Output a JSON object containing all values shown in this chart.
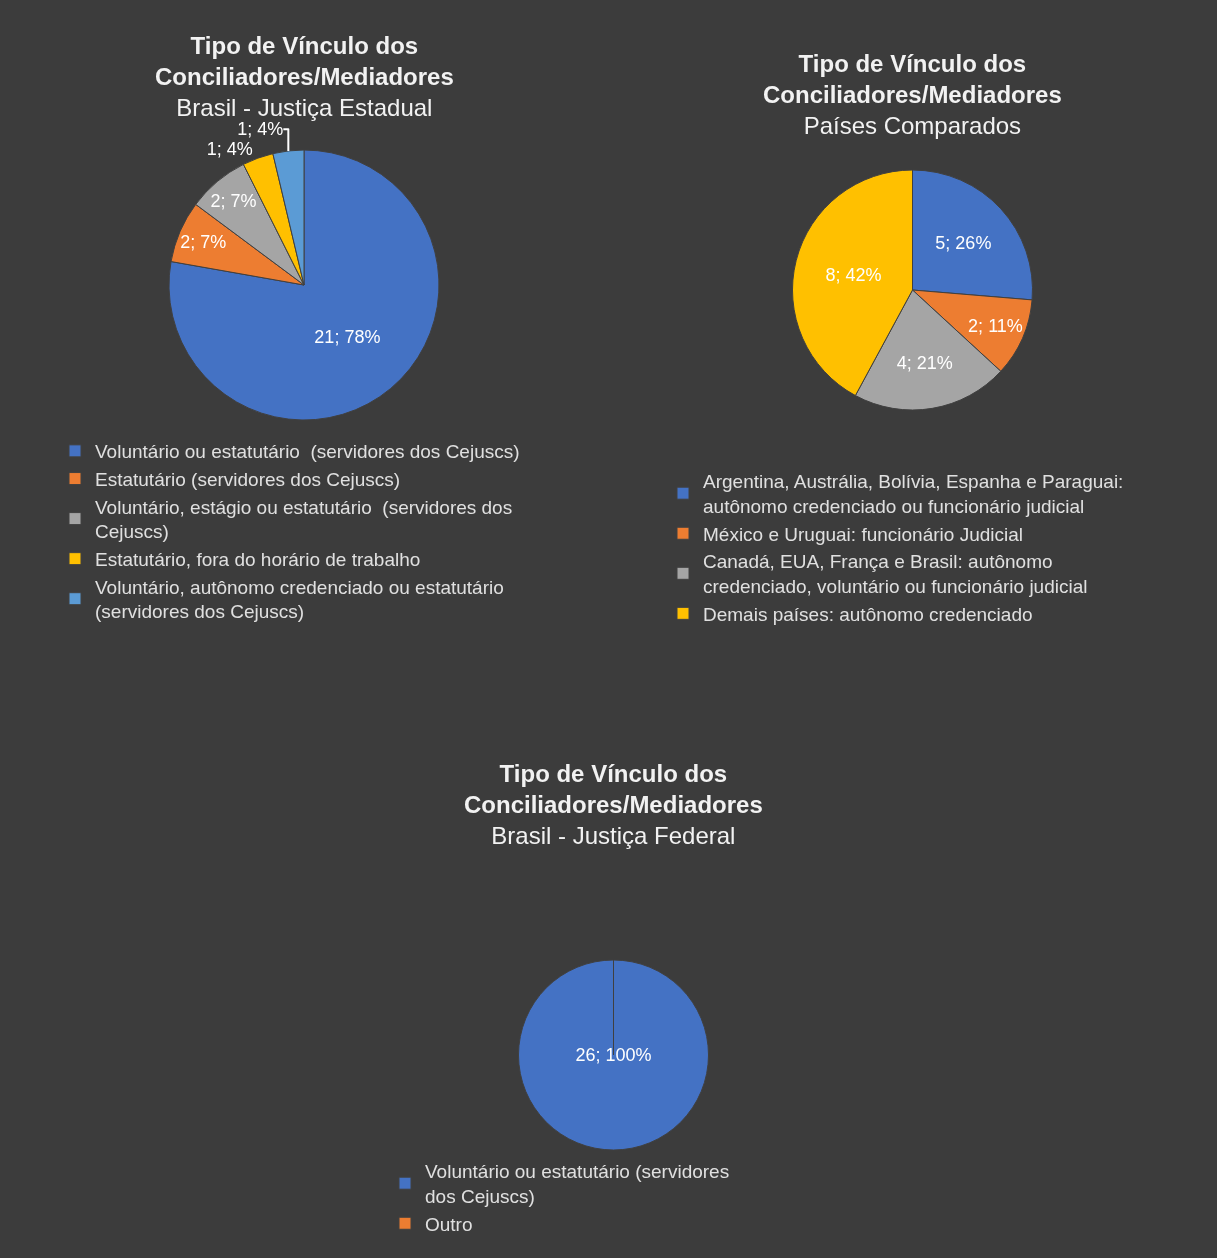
{
  "chart_data": [
    {
      "type": "pie",
      "title": "Tipo de Vínculo dos\nConciliadores/Mediadores",
      "subtitle": "Brasil - Justiça Estadual",
      "categories": [
        "Voluntário ou estatutário  (servidores dos Cejuscs)",
        "Estatutário (servidores dos Cejuscs)",
        "Voluntário, estágio ou estatutário  (servidores dos\nCejuscs)",
        "Estatutário, fora do horário de trabalho",
        "Voluntário, autônomo credenciado ou estatutário\n(servidores dos Cejuscs)"
      ],
      "values": [
        21,
        2,
        2,
        1,
        1
      ],
      "colors": [
        "#4472c4",
        "#ed7d31",
        "#a5a5a5",
        "#ffc000",
        "#5b9bd5"
      ],
      "value_labels": [
        "21; 78%",
        "2; 7%",
        "2; 7%",
        "1; 4%",
        "1; 4%"
      ],
      "legend": "bottom"
    },
    {
      "type": "pie",
      "title": "Tipo de Vínculo dos\nConciliadores/Mediadores",
      "subtitle": "Países Comparados",
      "categories": [
        "Argentina, Austrália, Bolívia, Espanha e Paraguai:\nautônomo credenciado ou funcionário judicial",
        "México e Uruguai: funcionário Judicial",
        "Canadá, EUA, França e Brasil: autônomo\ncredenciado, voluntário ou funcionário judicial",
        "Demais países: autônomo credenciado"
      ],
      "values": [
        5,
        2,
        4,
        8
      ],
      "colors": [
        "#4472c4",
        "#ed7d31",
        "#a5a5a5",
        "#ffc000"
      ],
      "value_labels": [
        "5; 26%",
        "2; 11%",
        "4; 21%",
        "8; 42%"
      ],
      "legend": "bottom"
    },
    {
      "type": "pie",
      "title": "Tipo de Vínculo dos\nConciliadores/Mediadores",
      "subtitle": "Brasil - Justiça Federal",
      "categories": [
        "Voluntário ou estatutário (servidores\ndos Cejuscs)",
        "Outro"
      ],
      "values": [
        26,
        0
      ],
      "colors": [
        "#4472c4",
        "#ed7d31"
      ],
      "value_labels": [
        "26; 100%",
        null
      ],
      "legend": "bottom"
    }
  ]
}
